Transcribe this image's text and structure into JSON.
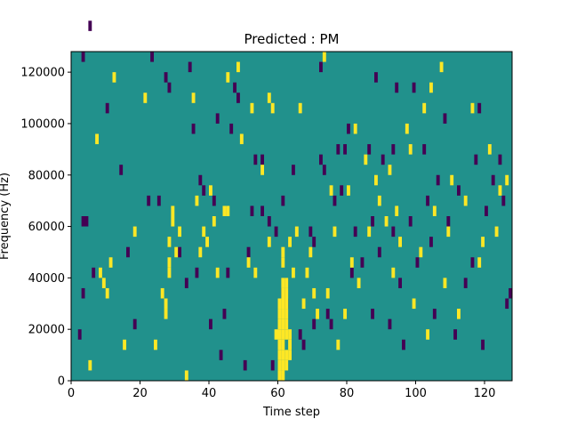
{
  "chart_data": {
    "type": "heatmap",
    "title": "Predicted : PM",
    "xlabel": "Time step",
    "ylabel": "Frequency (Hz)",
    "xlim": [
      0,
      128
    ],
    "ylim": [
      0,
      128000
    ],
    "x_ticks": [
      0,
      20,
      40,
      60,
      80,
      100,
      120
    ],
    "y_ticks": [
      0,
      20000,
      40000,
      60000,
      80000,
      100000,
      120000
    ],
    "x_tick_labels": [
      "0",
      "20",
      "40",
      "60",
      "80",
      "100",
      "120"
    ],
    "y_tick_labels": [
      "0",
      "20000",
      "40000",
      "60000",
      "80000",
      "100000",
      "120000"
    ],
    "grid": false,
    "colormap": "viridis",
    "colors": {
      "background": "#21918c",
      "low": "#440154",
      "high": "#fde725"
    },
    "rows": 32,
    "columns": 128,
    "row_height_hz": 4000,
    "background_value": 0,
    "low_cells": [
      [
        3,
        15
      ],
      [
        4,
        15
      ],
      [
        2,
        4
      ],
      [
        3,
        8
      ],
      [
        6,
        10
      ],
      [
        3,
        31
      ],
      [
        5,
        34
      ],
      [
        16,
        12
      ],
      [
        18,
        5
      ],
      [
        23,
        31
      ],
      [
        25,
        17
      ],
      [
        35,
        24
      ],
      [
        36,
        10
      ],
      [
        37,
        19
      ],
      [
        38,
        18
      ],
      [
        40,
        5
      ],
      [
        41,
        17
      ],
      [
        43,
        2
      ],
      [
        44,
        6
      ],
      [
        45,
        10
      ],
      [
        47,
        28
      ],
      [
        50,
        1
      ],
      [
        51,
        12
      ],
      [
        52,
        16
      ],
      [
        53,
        21
      ],
      [
        55,
        21
      ],
      [
        57,
        15
      ],
      [
        58,
        1
      ],
      [
        59,
        14
      ],
      [
        61,
        8
      ],
      [
        62,
        7
      ],
      [
        64,
        20
      ],
      [
        66,
        4
      ],
      [
        67,
        3
      ],
      [
        69,
        14
      ],
      [
        70,
        13
      ],
      [
        72,
        21
      ],
      [
        73,
        20
      ],
      [
        74,
        6
      ],
      [
        75,
        5
      ],
      [
        76,
        17
      ],
      [
        77,
        22
      ],
      [
        78,
        18
      ],
      [
        79,
        22
      ],
      [
        81,
        10
      ],
      [
        82,
        14
      ],
      [
        84,
        11
      ],
      [
        86,
        22
      ],
      [
        87,
        6
      ],
      [
        88,
        29
      ],
      [
        89,
        12
      ],
      [
        90,
        21
      ],
      [
        92,
        5
      ],
      [
        93,
        14
      ],
      [
        94,
        28
      ],
      [
        95,
        9
      ],
      [
        96,
        3
      ],
      [
        98,
        15
      ],
      [
        99,
        28
      ],
      [
        100,
        11
      ],
      [
        102,
        22
      ],
      [
        103,
        17
      ],
      [
        104,
        13
      ],
      [
        105,
        6
      ],
      [
        106,
        19
      ],
      [
        108,
        25
      ],
      [
        109,
        15
      ],
      [
        111,
        4
      ],
      [
        112,
        18
      ],
      [
        114,
        9
      ],
      [
        116,
        11
      ],
      [
        117,
        21
      ],
      [
        118,
        26
      ],
      [
        119,
        3
      ],
      [
        120,
        16
      ],
      [
        122,
        19
      ],
      [
        124,
        21
      ],
      [
        125,
        17
      ],
      [
        126,
        7
      ],
      [
        127,
        8
      ],
      [
        10,
        26
      ],
      [
        14,
        20
      ],
      [
        27,
        29
      ],
      [
        34,
        30
      ],
      [
        46,
        24
      ],
      [
        72,
        30
      ],
      [
        87,
        15
      ],
      [
        93,
        22
      ],
      [
        31,
        12
      ],
      [
        33,
        9
      ],
      [
        42,
        25
      ],
      [
        48,
        27
      ],
      [
        61,
        17
      ],
      [
        28,
        28
      ],
      [
        22,
        17
      ],
      [
        55,
        16
      ],
      [
        70,
        5
      ],
      [
        80,
        24
      ]
    ],
    "high_cells": [
      [
        5,
        1
      ],
      [
        8,
        10
      ],
      [
        9,
        9
      ],
      [
        10,
        8
      ],
      [
        11,
        11
      ],
      [
        27,
        6
      ],
      [
        27,
        7
      ],
      [
        28,
        10
      ],
      [
        28,
        11
      ],
      [
        28,
        13
      ],
      [
        29,
        15
      ],
      [
        29,
        16
      ],
      [
        30,
        12
      ],
      [
        31,
        14
      ],
      [
        33,
        0
      ],
      [
        35,
        27
      ],
      [
        36,
        17
      ],
      [
        37,
        12
      ],
      [
        38,
        14
      ],
      [
        39,
        13
      ],
      [
        40,
        18
      ],
      [
        41,
        15
      ],
      [
        42,
        10
      ],
      [
        44,
        16
      ],
      [
        45,
        16
      ],
      [
        48,
        30
      ],
      [
        49,
        23
      ],
      [
        51,
        11
      ],
      [
        52,
        26
      ],
      [
        53,
        10
      ],
      [
        55,
        20
      ],
      [
        57,
        13
      ],
      [
        58,
        26
      ],
      [
        59,
        4
      ],
      [
        60,
        0
      ],
      [
        60,
        1
      ],
      [
        60,
        2
      ],
      [
        60,
        3
      ],
      [
        60,
        4
      ],
      [
        60,
        5
      ],
      [
        60,
        6
      ],
      [
        60,
        7
      ],
      [
        61,
        0
      ],
      [
        61,
        1
      ],
      [
        61,
        2
      ],
      [
        61,
        3
      ],
      [
        61,
        4
      ],
      [
        61,
        5
      ],
      [
        61,
        6
      ],
      [
        61,
        7
      ],
      [
        61,
        8
      ],
      [
        61,
        9
      ],
      [
        61,
        11
      ],
      [
        61,
        12
      ],
      [
        62,
        1
      ],
      [
        62,
        2
      ],
      [
        62,
        4
      ],
      [
        62,
        5
      ],
      [
        62,
        6
      ],
      [
        62,
        7
      ],
      [
        62,
        8
      ],
      [
        62,
        9
      ],
      [
        63,
        2
      ],
      [
        63,
        3
      ],
      [
        63,
        4
      ],
      [
        63,
        13
      ],
      [
        64,
        10
      ],
      [
        65,
        14
      ],
      [
        66,
        26
      ],
      [
        67,
        7
      ],
      [
        68,
        10
      ],
      [
        69,
        12
      ],
      [
        70,
        8
      ],
      [
        71,
        6
      ],
      [
        73,
        31
      ],
      [
        74,
        8
      ],
      [
        76,
        14
      ],
      [
        77,
        3
      ],
      [
        79,
        6
      ],
      [
        80,
        18
      ],
      [
        81,
        11
      ],
      [
        82,
        24
      ],
      [
        83,
        9
      ],
      [
        85,
        21
      ],
      [
        86,
        14
      ],
      [
        88,
        19
      ],
      [
        89,
        17
      ],
      [
        91,
        15
      ],
      [
        93,
        10
      ],
      [
        94,
        16
      ],
      [
        95,
        13
      ],
      [
        97,
        24
      ],
      [
        98,
        22
      ],
      [
        99,
        7
      ],
      [
        101,
        12
      ],
      [
        103,
        4
      ],
      [
        104,
        28
      ],
      [
        105,
        16
      ],
      [
        107,
        30
      ],
      [
        108,
        9
      ],
      [
        109,
        14
      ],
      [
        110,
        19
      ],
      [
        112,
        6
      ],
      [
        114,
        17
      ],
      [
        116,
        26
      ],
      [
        118,
        11
      ],
      [
        119,
        13
      ],
      [
        121,
        22
      ],
      [
        123,
        14
      ],
      [
        124,
        18
      ],
      [
        126,
        19
      ],
      [
        7,
        23
      ],
      [
        12,
        29
      ],
      [
        15,
        3
      ],
      [
        18,
        14
      ],
      [
        21,
        27
      ],
      [
        24,
        3
      ],
      [
        26,
        8
      ],
      [
        45,
        29
      ],
      [
        57,
        27
      ],
      [
        75,
        18
      ],
      [
        92,
        20
      ],
      [
        102,
        26
      ]
    ]
  }
}
